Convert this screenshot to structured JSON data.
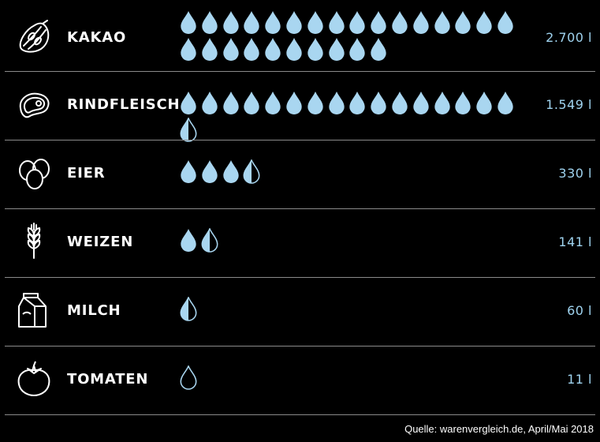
{
  "chart_data": {
    "type": "pictogram",
    "unit": "l",
    "source": "Quelle: warenvergleich.de, April/Mai 2018",
    "drop_color": "#a9d6f0",
    "value_color": "#9fd3ef",
    "categories": [
      {
        "label": "KAKAO",
        "value": 2700,
        "display": "2.700 l",
        "icon": "cacao-pod-icon"
      },
      {
        "label": "RINDFLEISCH",
        "value": 1549,
        "display": "1.549 l",
        "icon": "steak-icon"
      },
      {
        "label": "EIER",
        "value": 330,
        "display": "330 l",
        "icon": "eggs-icon"
      },
      {
        "label": "WEIZEN",
        "value": 141,
        "display": "141 l",
        "icon": "wheat-icon"
      },
      {
        "label": "MILCH",
        "value": 60,
        "display": "60 l",
        "icon": "milk-carton-icon"
      },
      {
        "label": "TOMATEN",
        "value": 11,
        "display": "11 l",
        "icon": "tomato-icon"
      }
    ],
    "drop_counts": [
      26,
      16.5,
      3.5,
      1.5,
      0.5,
      0
    ]
  }
}
